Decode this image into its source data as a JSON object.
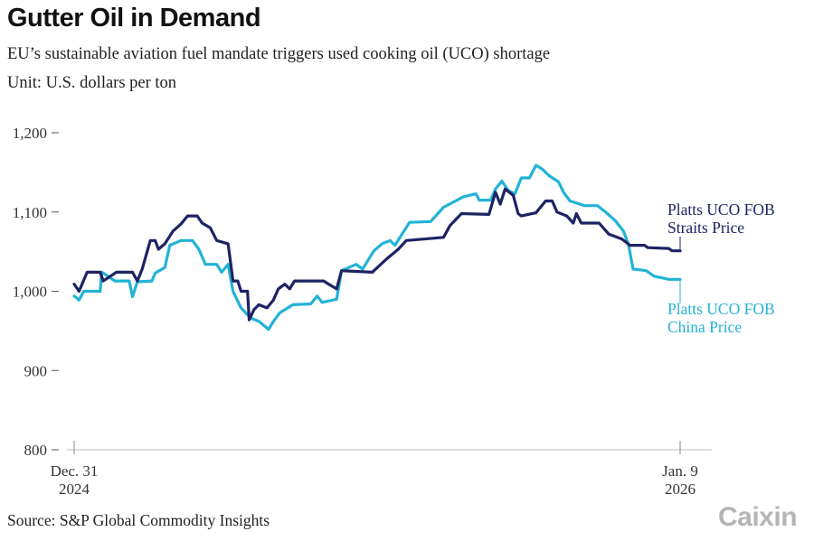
{
  "title": "Gutter Oil in Demand",
  "subtitle": "EU’s sustainable aviation fuel mandate triggers used cooking oil (UCO) shortage",
  "unit": "Unit: U.S. dollars per ton",
  "source": "Source: S&P Global Commodity Insights",
  "logo": "Caixin",
  "chart_data": {
    "type": "line",
    "title": "Gutter Oil in Demand",
    "ylabel": "U.S. dollars per ton",
    "ylim": [
      800,
      1200
    ],
    "yticks": [
      800,
      900,
      1000,
      1100,
      1200
    ],
    "ytick_labels": [
      "800",
      "900",
      "1,000",
      "1,100",
      "1,200"
    ],
    "xlim": [
      "2024-12-31",
      "2026-01-09"
    ],
    "xtick_labels": [
      {
        "date": "2024-12-31",
        "line1": "Dec. 31",
        "line2": "2024"
      },
      {
        "date": "2026-01-09",
        "line1": "Jan. 9",
        "line2": "2026"
      }
    ],
    "grid": false,
    "legend": "inline-right",
    "series": [
      {
        "name": "Platts UCO FOB Straits Price",
        "label_lines": [
          "Platts UCO FOB",
          "Straits Price"
        ],
        "color": "#1d2363",
        "points": [
          [
            "2024-12-31",
            1009
          ],
          [
            "2025-01-03",
            1000
          ],
          [
            "2025-01-08",
            1024
          ],
          [
            "2025-01-16",
            1024
          ],
          [
            "2025-01-18",
            1013
          ],
          [
            "2025-01-26",
            1024
          ],
          [
            "2025-02-05",
            1024
          ],
          [
            "2025-02-08",
            1013
          ],
          [
            "2025-02-11",
            1028
          ],
          [
            "2025-02-16",
            1064
          ],
          [
            "2025-02-19",
            1064
          ],
          [
            "2025-02-21",
            1053
          ],
          [
            "2025-02-25",
            1060
          ],
          [
            "2025-03-02",
            1076
          ],
          [
            "2025-03-07",
            1085
          ],
          [
            "2025-03-11",
            1095
          ],
          [
            "2025-03-17",
            1095
          ],
          [
            "2025-03-20",
            1086
          ],
          [
            "2025-03-25",
            1080
          ],
          [
            "2025-03-29",
            1064
          ],
          [
            "2025-04-05",
            1060
          ],
          [
            "2025-04-08",
            1013
          ],
          [
            "2025-04-11",
            1013
          ],
          [
            "2025-04-13",
            1000
          ],
          [
            "2025-04-17",
            1000
          ],
          [
            "2025-04-18",
            964
          ],
          [
            "2025-04-21",
            977
          ],
          [
            "2025-04-24",
            983
          ],
          [
            "2025-04-29",
            979
          ],
          [
            "2025-05-03",
            989
          ],
          [
            "2025-05-06",
            1003
          ],
          [
            "2025-05-10",
            1009
          ],
          [
            "2025-05-13",
            1003
          ],
          [
            "2025-05-16",
            1013
          ],
          [
            "2025-06-03",
            1013
          ],
          [
            "2025-06-06",
            1009
          ],
          [
            "2025-06-11",
            1003
          ],
          [
            "2025-06-14",
            1026
          ],
          [
            "2025-07-03",
            1024
          ],
          [
            "2025-07-12",
            1041
          ],
          [
            "2025-07-19",
            1053
          ],
          [
            "2025-07-24",
            1064
          ],
          [
            "2025-08-16",
            1068
          ],
          [
            "2025-08-20",
            1083
          ],
          [
            "2025-08-27",
            1098
          ],
          [
            "2025-09-13",
            1097
          ],
          [
            "2025-09-17",
            1125
          ],
          [
            "2025-09-20",
            1110
          ],
          [
            "2025-09-23",
            1129
          ],
          [
            "2025-09-28",
            1121
          ],
          [
            "2025-10-01",
            1098
          ],
          [
            "2025-10-03",
            1095
          ],
          [
            "2025-10-12",
            1099
          ],
          [
            "2025-10-18",
            1114
          ],
          [
            "2025-10-22",
            1114
          ],
          [
            "2025-10-25",
            1100
          ],
          [
            "2025-10-31",
            1095
          ],
          [
            "2025-11-04",
            1086
          ],
          [
            "2025-11-06",
            1098
          ],
          [
            "2025-11-09",
            1086
          ],
          [
            "2025-11-20",
            1086
          ],
          [
            "2025-11-26",
            1072
          ],
          [
            "2025-12-04",
            1066
          ],
          [
            "2025-12-09",
            1058
          ],
          [
            "2025-12-18",
            1058
          ],
          [
            "2025-12-20",
            1055
          ],
          [
            "2026-01-02",
            1054
          ],
          [
            "2026-01-04",
            1051
          ],
          [
            "2026-01-09",
            1051
          ]
        ]
      },
      {
        "name": "Platts UCO FOB China Price",
        "label_lines": [
          "Platts UCO FOB",
          "China Price"
        ],
        "color": "#22b3d6",
        "points": [
          [
            "2024-12-31",
            994
          ],
          [
            "2025-01-03",
            989
          ],
          [
            "2025-01-06",
            1000
          ],
          [
            "2025-01-16",
            1000
          ],
          [
            "2025-01-17",
            1024
          ],
          [
            "2025-01-21",
            1019
          ],
          [
            "2025-01-25",
            1013
          ],
          [
            "2025-02-03",
            1013
          ],
          [
            "2025-02-05",
            993
          ],
          [
            "2025-02-08",
            1012
          ],
          [
            "2025-02-17",
            1013
          ],
          [
            "2025-02-19",
            1023
          ],
          [
            "2025-02-25",
            1030
          ],
          [
            "2025-02-28",
            1058
          ],
          [
            "2025-03-07",
            1064
          ],
          [
            "2025-03-14",
            1064
          ],
          [
            "2025-03-18",
            1053
          ],
          [
            "2025-03-22",
            1034
          ],
          [
            "2025-03-29",
            1034
          ],
          [
            "2025-04-01",
            1024
          ],
          [
            "2025-04-05",
            1034
          ],
          [
            "2025-04-08",
            1000
          ],
          [
            "2025-04-13",
            979
          ],
          [
            "2025-04-19",
            966
          ],
          [
            "2025-04-24",
            962
          ],
          [
            "2025-04-30",
            952
          ],
          [
            "2025-05-03",
            962
          ],
          [
            "2025-05-07",
            973
          ],
          [
            "2025-05-15",
            983
          ],
          [
            "2025-05-26",
            984
          ],
          [
            "2025-05-30",
            994
          ],
          [
            "2025-06-02",
            986
          ],
          [
            "2025-06-11",
            990
          ],
          [
            "2025-06-14",
            1026
          ],
          [
            "2025-06-23",
            1034
          ],
          [
            "2025-06-27",
            1028
          ],
          [
            "2025-07-04",
            1051
          ],
          [
            "2025-07-09",
            1060
          ],
          [
            "2025-07-14",
            1064
          ],
          [
            "2025-07-17",
            1058
          ],
          [
            "2025-07-26",
            1087
          ],
          [
            "2025-08-08",
            1088
          ],
          [
            "2025-08-16",
            1106
          ],
          [
            "2025-08-28",
            1119
          ],
          [
            "2025-09-05",
            1123
          ],
          [
            "2025-09-07",
            1115
          ],
          [
            "2025-09-14",
            1115
          ],
          [
            "2025-09-17",
            1129
          ],
          [
            "2025-09-21",
            1139
          ],
          [
            "2025-09-25",
            1127
          ],
          [
            "2025-09-29",
            1123
          ],
          [
            "2025-10-03",
            1143
          ],
          [
            "2025-10-08",
            1143
          ],
          [
            "2025-10-12",
            1159
          ],
          [
            "2025-10-16",
            1154
          ],
          [
            "2025-10-20",
            1146
          ],
          [
            "2025-10-26",
            1138
          ],
          [
            "2025-10-29",
            1125
          ],
          [
            "2025-11-02",
            1114
          ],
          [
            "2025-11-11",
            1108
          ],
          [
            "2025-11-19",
            1108
          ],
          [
            "2025-11-24",
            1100
          ],
          [
            "2025-11-30",
            1089
          ],
          [
            "2025-12-05",
            1076
          ],
          [
            "2025-12-08",
            1060
          ],
          [
            "2025-12-11",
            1028
          ],
          [
            "2025-12-19",
            1026
          ],
          [
            "2025-12-24",
            1019
          ],
          [
            "2026-01-02",
            1015
          ],
          [
            "2026-01-09",
            1015
          ]
        ]
      }
    ]
  }
}
